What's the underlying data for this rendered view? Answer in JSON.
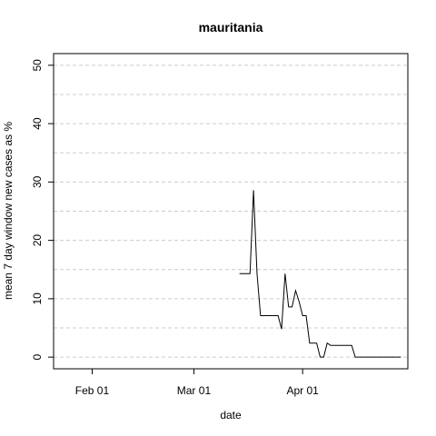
{
  "chart_data": {
    "type": "line",
    "title": "mauritania",
    "xlabel": "date",
    "ylabel": "mean  7  day window new cases as %",
    "xlim": [
      "2020-01-21",
      "2020-05-01"
    ],
    "ylim": [
      -2,
      52
    ],
    "xticks": [
      {
        "date": "2020-02-01",
        "label": "Feb 01"
      },
      {
        "date": "2020-03-01",
        "label": "Mar 01"
      },
      {
        "date": "2020-04-01",
        "label": "Apr 01"
      }
    ],
    "yticks": [
      0,
      10,
      20,
      30,
      40,
      50
    ],
    "grid": true,
    "series": [
      {
        "x": [
          "2020-03-14",
          "2020-03-15",
          "2020-03-16",
          "2020-03-17",
          "2020-03-18",
          "2020-03-19",
          "2020-03-20",
          "2020-03-21",
          "2020-03-22",
          "2020-03-23",
          "2020-03-24",
          "2020-03-25",
          "2020-03-26",
          "2020-03-27",
          "2020-03-28",
          "2020-03-29",
          "2020-03-30",
          "2020-03-31",
          "2020-04-01",
          "2020-04-02",
          "2020-04-03",
          "2020-04-04",
          "2020-04-05",
          "2020-04-06",
          "2020-04-07",
          "2020-04-08",
          "2020-04-09",
          "2020-04-10",
          "2020-04-11",
          "2020-04-12",
          "2020-04-13",
          "2020-04-14",
          "2020-04-15",
          "2020-04-16",
          "2020-04-17",
          "2020-04-18",
          "2020-04-19",
          "2020-04-20",
          "2020-04-21",
          "2020-04-22",
          "2020-04-23",
          "2020-04-24",
          "2020-04-25",
          "2020-04-26",
          "2020-04-27",
          "2020-04-28",
          "2020-04-29"
        ],
        "y": [
          14.3,
          14.3,
          14.3,
          14.3,
          28.6,
          14.3,
          7.1,
          7.1,
          7.1,
          7.1,
          7.1,
          7.1,
          4.8,
          14.3,
          8.6,
          8.6,
          11.4,
          9.5,
          7.1,
          7.1,
          2.4,
          2.4,
          2.4,
          0,
          0,
          2.4,
          2.0,
          2.0,
          2.0,
          2.0,
          2.0,
          2.0,
          2.0,
          0,
          0,
          0,
          0,
          0,
          0,
          0,
          0,
          0,
          0,
          0,
          0,
          0,
          0
        ]
      }
    ]
  }
}
